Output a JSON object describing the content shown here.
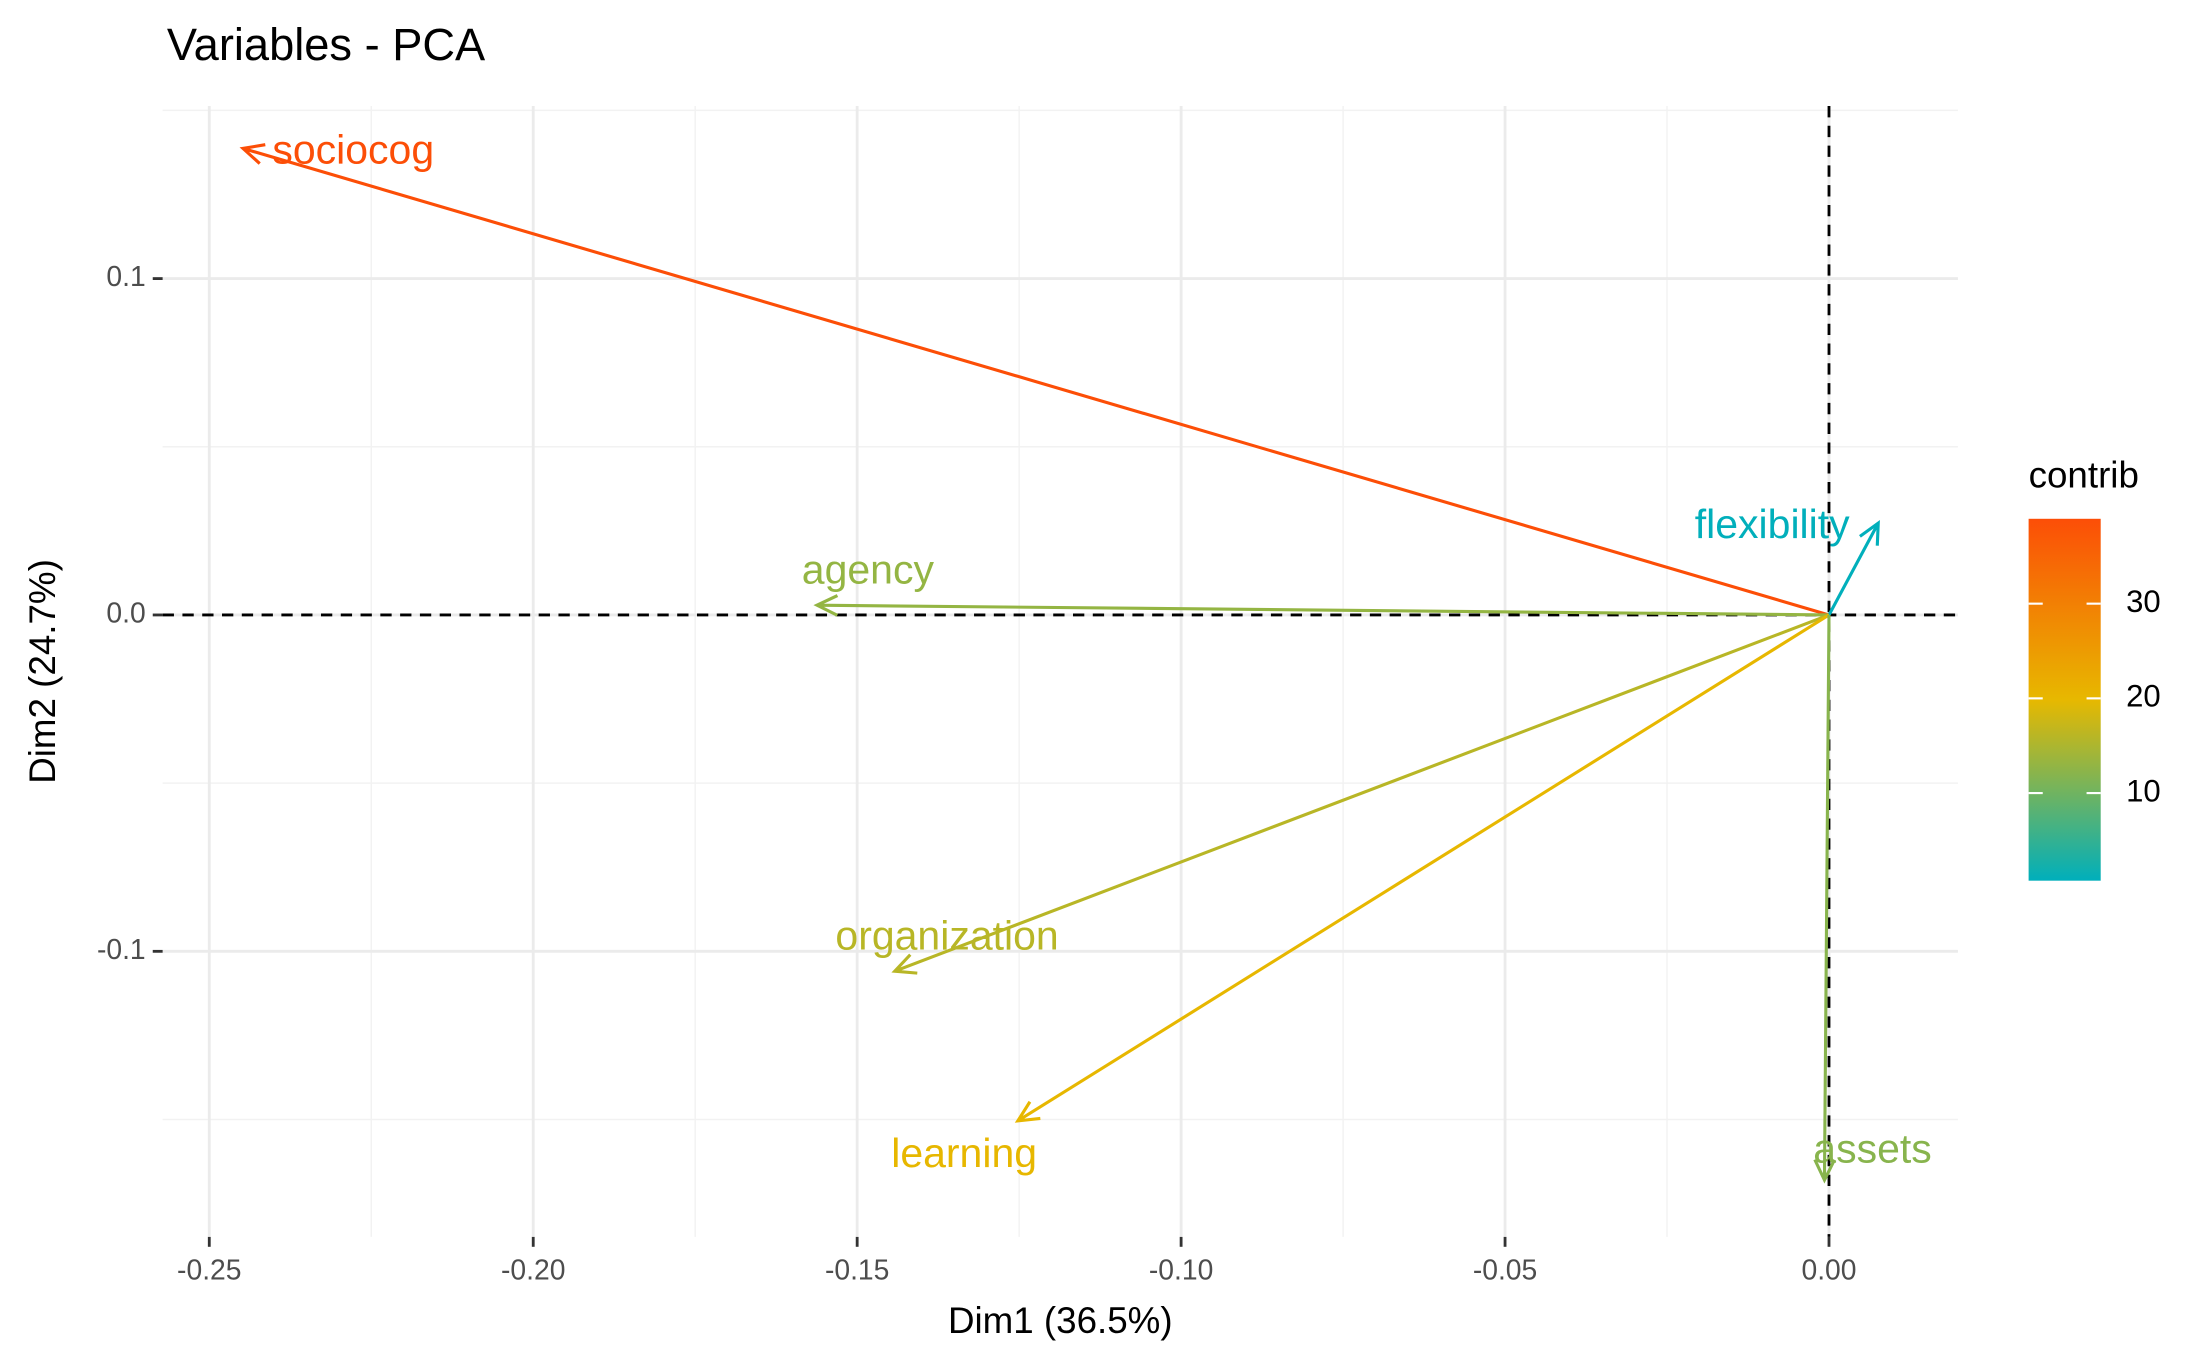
{
  "chart_data": {
    "type": "vector",
    "title": "Variables - PCA",
    "x_label": "Dim1 (36.5%)",
    "y_label": "Dim2 (24.7%)",
    "legend_title": "contrib",
    "categories": [
      "sociocog",
      "agency",
      "flexibility",
      "organization",
      "learning",
      "assets"
    ],
    "x": [
      -0.2448,
      -0.1562,
      0.0076,
      -0.1442,
      -0.1252,
      -0.0007
    ],
    "values": [
      0.1387,
      0.0029,
      0.0273,
      -0.1059,
      -0.1504,
      -0.168
    ],
    "contrib": [
      38.9,
      13,
      0.8,
      16,
      20,
      12
    ],
    "gradient": [
      "#00AFBB",
      "#E7B800",
      "#FC4E07"
    ],
    "color_lim": [
      0.75,
      38.96
    ],
    "color_ticks": [
      10,
      20,
      30
    ],
    "xlim": [
      -0.2572,
      0.0199
    ],
    "ylim": [
      -0.1849,
      0.1513
    ],
    "xticks": [
      -0.25,
      {
        "value": -0.2,
        "label": "-0.20"
      },
      -0.15,
      {
        "value": -0.1,
        "label": "-0.10"
      },
      -0.05,
      {
        "value": 0,
        "label": "0.00"
      }
    ],
    "yticks": [
      0.1,
      {
        "value": 0,
        "label": "0.0"
      },
      -0.1
    ],
    "grid": true
  }
}
